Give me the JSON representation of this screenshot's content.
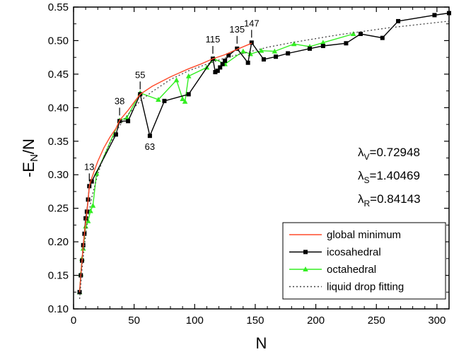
{
  "chart_data": {
    "type": "line",
    "xlabel": "N",
    "ylabel": "-E",
    "ylabel_sub": "N",
    "ylabel_suffix": "/N",
    "xlim": [
      0,
      310
    ],
    "ylim": [
      0.1,
      0.55
    ],
    "x_ticks": [
      0,
      50,
      100,
      150,
      200,
      250,
      300
    ],
    "x_tick_labels": [
      "0",
      "50",
      "100",
      "150",
      "200",
      "250",
      "300"
    ],
    "y_ticks": [
      0.1,
      0.15,
      0.2,
      0.25,
      0.3,
      0.35,
      0.4,
      0.45,
      0.5,
      0.55
    ],
    "y_tick_labels": [
      "0.10",
      "0.15",
      "0.20",
      "0.25",
      "0.30",
      "0.35",
      "0.40",
      "0.45",
      "0.50",
      "0.55"
    ],
    "grid": false,
    "legend_position": "bottom-right",
    "series": [
      {
        "name": "global minimum",
        "style": "line",
        "color": "#ff4a2a",
        "x": [
          5,
          6,
          7,
          8,
          9,
          10,
          11,
          12,
          13,
          15,
          18,
          20,
          25,
          30,
          35,
          38,
          45,
          50,
          55,
          65,
          80,
          95,
          105,
          115,
          125,
          135,
          147
        ],
        "y": [
          0.125,
          0.15,
          0.172,
          0.195,
          0.212,
          0.228,
          0.243,
          0.262,
          0.283,
          0.295,
          0.31,
          0.32,
          0.34,
          0.356,
          0.369,
          0.381,
          0.396,
          0.408,
          0.42,
          0.432,
          0.446,
          0.458,
          0.465,
          0.473,
          0.479,
          0.487,
          0.496
        ]
      },
      {
        "name": "icosahedral",
        "style": "line-square",
        "color": "#000000",
        "x": [
          5,
          6,
          7,
          8,
          9,
          10,
          11,
          12,
          13,
          15,
          35,
          38,
          45,
          55,
          63,
          75,
          95,
          115,
          117,
          119,
          121,
          123,
          125,
          128,
          135,
          144,
          147,
          157,
          167,
          177,
          195,
          206,
          225,
          237,
          255,
          268,
          298,
          310
        ],
        "y": [
          0.125,
          0.15,
          0.172,
          0.195,
          0.212,
          0.235,
          0.245,
          0.263,
          0.283,
          0.29,
          0.36,
          0.38,
          0.38,
          0.42,
          0.358,
          0.41,
          0.42,
          0.473,
          0.453,
          0.455,
          0.46,
          0.465,
          0.47,
          0.478,
          0.488,
          0.467,
          0.497,
          0.472,
          0.476,
          0.481,
          0.488,
          0.492,
          0.496,
          0.51,
          0.504,
          0.529,
          0.538,
          0.541
        ]
      },
      {
        "name": "octahedral",
        "style": "line-triangle",
        "color": "#33ee22",
        "x": [
          5,
          6,
          7,
          8,
          10,
          12,
          14,
          16,
          19,
          38,
          44,
          55,
          70,
          85,
          90,
          92,
          95,
          110,
          116,
          125,
          140,
          146,
          155,
          166,
          182,
          195,
          206,
          231
        ],
        "y": [
          0.125,
          0.152,
          0.175,
          0.19,
          0.223,
          0.231,
          0.246,
          0.254,
          0.302,
          0.381,
          0.385,
          0.422,
          0.412,
          0.441,
          0.413,
          0.409,
          0.447,
          0.46,
          0.473,
          0.465,
          0.484,
          0.48,
          0.485,
          0.484,
          0.495,
          0.491,
          0.497,
          0.51
        ]
      },
      {
        "name": "liquid drop fitting",
        "style": "dotted",
        "color": "#444444",
        "x": [
          5,
          7,
          9,
          12,
          15,
          20,
          25,
          30,
          38,
          45,
          55,
          65,
          80,
          95,
          110,
          125,
          140,
          160,
          180,
          200,
          220,
          240,
          260,
          280,
          300,
          310
        ],
        "y": [
          0.115,
          0.16,
          0.195,
          0.238,
          0.266,
          0.301,
          0.327,
          0.347,
          0.373,
          0.39,
          0.41,
          0.424,
          0.442,
          0.455,
          0.465,
          0.474,
          0.481,
          0.49,
          0.497,
          0.503,
          0.509,
          0.514,
          0.519,
          0.523,
          0.527,
          0.529
        ]
      }
    ],
    "annotations": [
      {
        "label": "13",
        "x": 13,
        "y": 0.283,
        "position": "above"
      },
      {
        "label": "38",
        "x": 38,
        "y": 0.381,
        "position": "above"
      },
      {
        "label": "55",
        "x": 55,
        "y": 0.42,
        "position": "above"
      },
      {
        "label": "63",
        "x": 63,
        "y": 0.358,
        "position": "below"
      },
      {
        "label": "115",
        "x": 115,
        "y": 0.473,
        "position": "above"
      },
      {
        "label": "135",
        "x": 135,
        "y": 0.488,
        "position": "above"
      },
      {
        "label": "147",
        "x": 147,
        "y": 0.497,
        "position": "above"
      }
    ],
    "parameters": [
      {
        "symbol": "λ",
        "sub": "V",
        "value": "=0.72948"
      },
      {
        "symbol": "λ",
        "sub": "S",
        "value": "=1.40469"
      },
      {
        "symbol": "λ",
        "sub": "R",
        "value": "=0.84143"
      }
    ]
  }
}
